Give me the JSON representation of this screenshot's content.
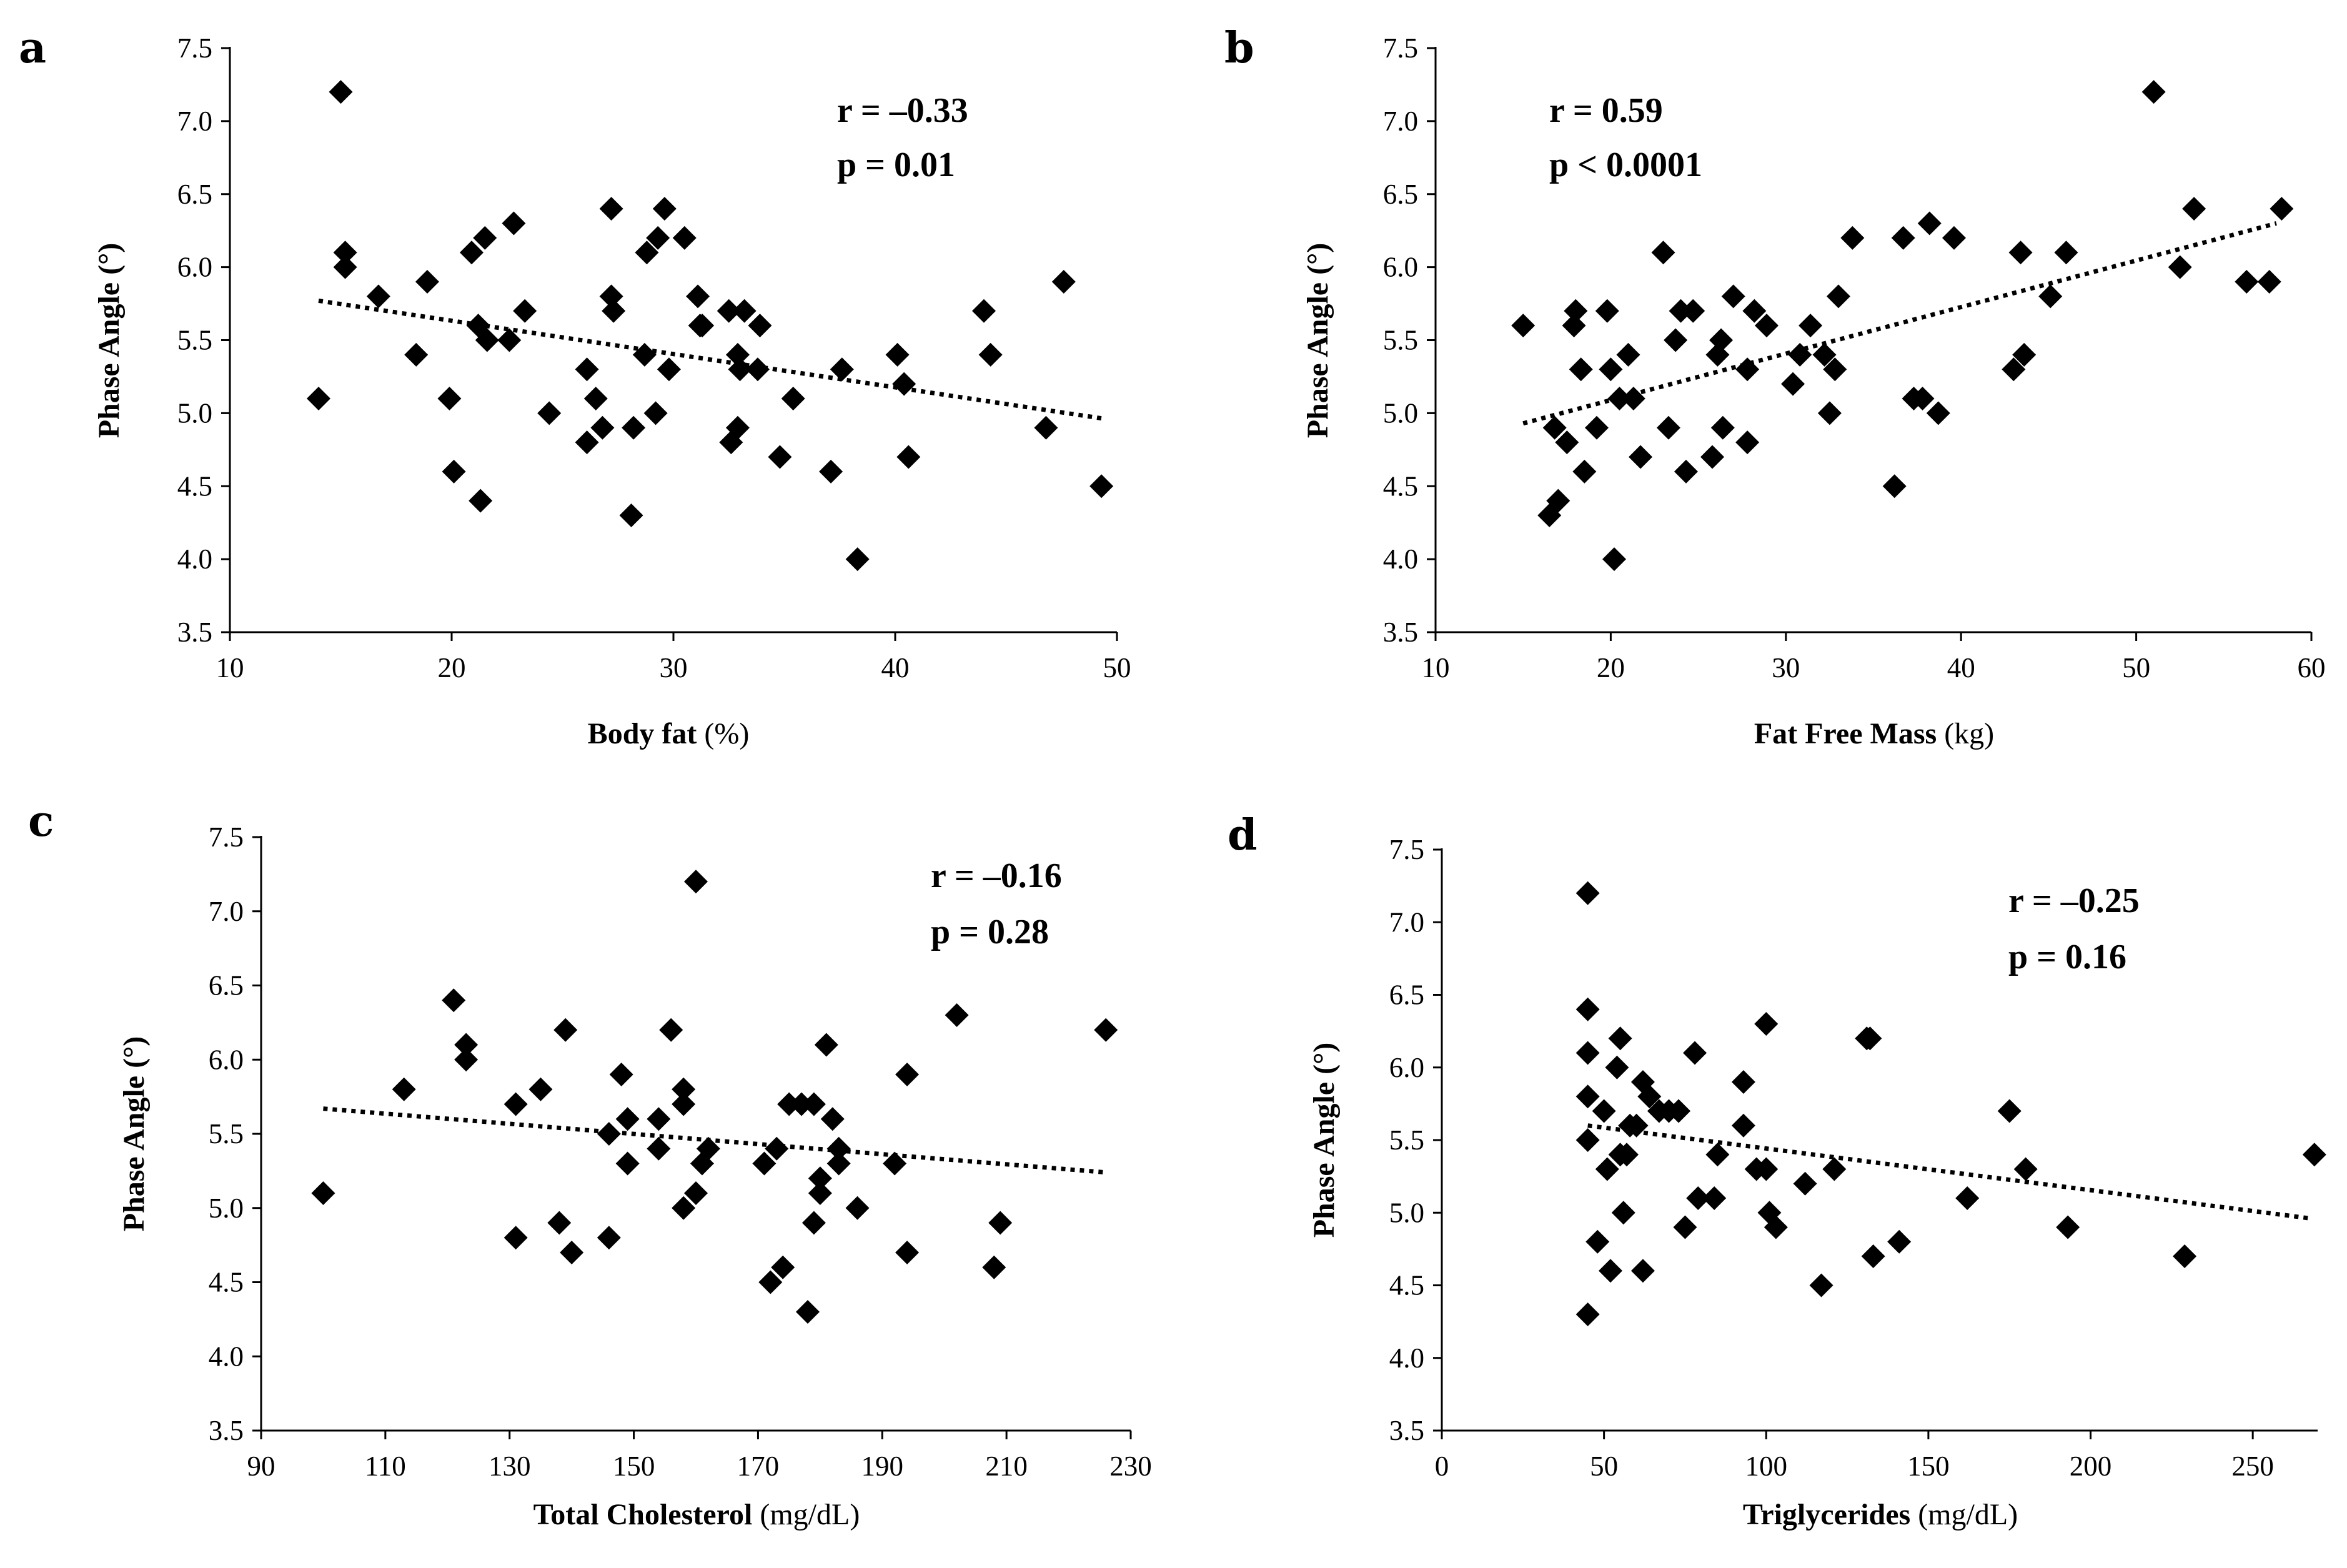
{
  "chart_data": [
    {
      "type": "scatter",
      "panel": "a",
      "xlabel": "Body fat",
      "xunit": " (%)",
      "ylabel": "Phase Angle (°)",
      "xlim": [
        10,
        50
      ],
      "ylim": [
        3.5,
        7.5
      ],
      "xticks": [
        10,
        20,
        30,
        40,
        50
      ],
      "yticks": [
        3.5,
        4.0,
        4.5,
        5.0,
        5.5,
        6.0,
        6.5,
        7.0,
        7.5
      ],
      "x_decimals": 0,
      "r_text": "r = –0.33",
      "p_text": "p = 0.01",
      "trend": [
        [
          14,
          5.77
        ],
        [
          49.5,
          4.96
        ]
      ],
      "points": [
        [
          14,
          5.1
        ],
        [
          15,
          7.2
        ],
        [
          15.2,
          6.1
        ],
        [
          15.2,
          6.0
        ],
        [
          16.7,
          5.8
        ],
        [
          18.4,
          5.4
        ],
        [
          18.9,
          5.9
        ],
        [
          19.9,
          5.1
        ],
        [
          20.1,
          4.6
        ],
        [
          20.9,
          6.1
        ],
        [
          21.2,
          5.6
        ],
        [
          21.3,
          4.4
        ],
        [
          21.5,
          6.2
        ],
        [
          21.6,
          5.5
        ],
        [
          22.6,
          5.5
        ],
        [
          22.8,
          6.3
        ],
        [
          23.3,
          5.7
        ],
        [
          24.4,
          5.0
        ],
        [
          26.1,
          5.3
        ],
        [
          26.1,
          4.8
        ],
        [
          26.5,
          5.1
        ],
        [
          26.8,
          4.9
        ],
        [
          27.2,
          6.4
        ],
        [
          27.2,
          5.8
        ],
        [
          27.3,
          5.7
        ],
        [
          28.1,
          4.3
        ],
        [
          28.2,
          4.9
        ],
        [
          28.7,
          5.4
        ],
        [
          28.8,
          6.1
        ],
        [
          29.2,
          5.0
        ],
        [
          29.3,
          6.2
        ],
        [
          29.6,
          6.4
        ],
        [
          29.8,
          5.3
        ],
        [
          30.5,
          6.2
        ],
        [
          31.1,
          5.8
        ],
        [
          31.2,
          5.6
        ],
        [
          31.3,
          5.6
        ],
        [
          32.5,
          5.7
        ],
        [
          32.6,
          4.8
        ],
        [
          32.9,
          4.9
        ],
        [
          32.9,
          5.4
        ],
        [
          33.0,
          5.3
        ],
        [
          33.2,
          5.7
        ],
        [
          33.9,
          5.6
        ],
        [
          33.8,
          5.3
        ],
        [
          34.8,
          4.7
        ],
        [
          35.4,
          5.1
        ],
        [
          37.1,
          4.6
        ],
        [
          37.6,
          5.3
        ],
        [
          38.3,
          4.0
        ],
        [
          40.1,
          5.4
        ],
        [
          40.4,
          5.2
        ],
        [
          40.6,
          4.7
        ],
        [
          44.0,
          5.7
        ],
        [
          44.3,
          5.4
        ],
        [
          46.8,
          4.9
        ],
        [
          47.6,
          5.9
        ],
        [
          49.3,
          4.5
        ]
      ]
    },
    {
      "type": "scatter",
      "panel": "b",
      "xlabel": "Fat Free Mass",
      "xunit": " (kg)",
      "ylabel": "Phase Angle (°)",
      "xlim": [
        10,
        60
      ],
      "ylim": [
        3.5,
        7.5
      ],
      "xticks": [
        10,
        20,
        30,
        40,
        50,
        60
      ],
      "yticks": [
        3.5,
        4.0,
        4.5,
        5.0,
        5.5,
        6.0,
        6.5,
        7.0,
        7.5
      ],
      "x_decimals": 0,
      "r_text": "r = 0.59",
      "p_text": "p < 0.0001",
      "trend": [
        [
          15,
          4.93
        ],
        [
          58,
          6.3
        ]
      ],
      "points": [
        [
          15.0,
          5.6
        ],
        [
          16.5,
          4.3
        ],
        [
          16.8,
          4.9
        ],
        [
          17.0,
          4.4
        ],
        [
          17.5,
          4.8
        ],
        [
          17.9,
          5.6
        ],
        [
          18.0,
          5.7
        ],
        [
          18.3,
          5.3
        ],
        [
          18.5,
          4.6
        ],
        [
          19.2,
          4.9
        ],
        [
          19.8,
          5.7
        ],
        [
          20.0,
          5.3
        ],
        [
          20.2,
          4.0
        ],
        [
          20.5,
          5.1
        ],
        [
          21.0,
          5.4
        ],
        [
          21.3,
          5.1
        ],
        [
          21.7,
          4.7
        ],
        [
          23.0,
          6.1
        ],
        [
          23.3,
          4.9
        ],
        [
          23.7,
          5.5
        ],
        [
          24.0,
          5.7
        ],
        [
          24.3,
          4.6
        ],
        [
          24.7,
          5.7
        ],
        [
          25.8,
          4.7
        ],
        [
          26.1,
          5.4
        ],
        [
          26.3,
          5.5
        ],
        [
          26.4,
          4.9
        ],
        [
          27.0,
          5.8
        ],
        [
          27.8,
          5.3
        ],
        [
          27.8,
          4.8
        ],
        [
          28.2,
          5.7
        ],
        [
          28.9,
          5.6
        ],
        [
          30.4,
          5.2
        ],
        [
          30.8,
          5.4
        ],
        [
          31.4,
          5.6
        ],
        [
          32.2,
          5.4
        ],
        [
          32.5,
          5.0
        ],
        [
          32.8,
          5.3
        ],
        [
          33.0,
          5.8
        ],
        [
          33.8,
          6.2
        ],
        [
          36.2,
          4.5
        ],
        [
          36.7,
          6.2
        ],
        [
          37.3,
          5.1
        ],
        [
          37.8,
          5.1
        ],
        [
          38.2,
          6.3
        ],
        [
          38.7,
          5.0
        ],
        [
          39.6,
          6.2
        ],
        [
          43.0,
          5.3
        ],
        [
          43.4,
          6.1
        ],
        [
          43.6,
          5.4
        ],
        [
          45.1,
          5.8
        ],
        [
          46.0,
          6.1
        ],
        [
          51.0,
          7.2
        ],
        [
          52.5,
          6.0
        ],
        [
          53.3,
          6.4
        ],
        [
          56.3,
          5.9
        ],
        [
          57.6,
          5.9
        ],
        [
          58.3,
          6.4
        ]
      ]
    },
    {
      "type": "scatter",
      "panel": "c",
      "xlabel": "Total Cholesterol",
      "xunit": " (mg/dL)",
      "ylabel": "Phase Angle (°)",
      "xlim": [
        90,
        230
      ],
      "ylim": [
        3.5,
        7.5
      ],
      "xticks": [
        90,
        110,
        130,
        150,
        170,
        190,
        210,
        230
      ],
      "yticks": [
        3.5,
        4.0,
        4.5,
        5.0,
        5.5,
        6.0,
        6.5,
        7.0,
        7.5
      ],
      "x_decimals": 0,
      "r_text": "r = –0.16",
      "p_text": "p = 0.28",
      "trend": [
        [
          100,
          5.67
        ],
        [
          226,
          5.24
        ]
      ],
      "points": [
        [
          100,
          5.1
        ],
        [
          113,
          5.8
        ],
        [
          121,
          6.4
        ],
        [
          123,
          6.1
        ],
        [
          123,
          6.0
        ],
        [
          131,
          5.7
        ],
        [
          131,
          4.8
        ],
        [
          135,
          5.8
        ],
        [
          138,
          4.9
        ],
        [
          139,
          6.2
        ],
        [
          140,
          4.7
        ],
        [
          146,
          5.5
        ],
        [
          146,
          4.8
        ],
        [
          148,
          5.9
        ],
        [
          149,
          5.6
        ],
        [
          149,
          5.3
        ],
        [
          154,
          5.6
        ],
        [
          154,
          5.4
        ],
        [
          156,
          6.2
        ],
        [
          158,
          5.7
        ],
        [
          158,
          5.8
        ],
        [
          158,
          5.0
        ],
        [
          160,
          7.2
        ],
        [
          160,
          5.1
        ],
        [
          161,
          5.3
        ],
        [
          162,
          5.4
        ],
        [
          171,
          5.3
        ],
        [
          172,
          4.5
        ],
        [
          173,
          5.4
        ],
        [
          174,
          4.6
        ],
        [
          175,
          5.7
        ],
        [
          177,
          5.7
        ],
        [
          178,
          4.3
        ],
        [
          179,
          5.7
        ],
        [
          179,
          4.9
        ],
        [
          180,
          5.2
        ],
        [
          180,
          5.1
        ],
        [
          181,
          6.1
        ],
        [
          182,
          5.6
        ],
        [
          183,
          5.4
        ],
        [
          183,
          5.3
        ],
        [
          186,
          5.0
        ],
        [
          192,
          5.3
        ],
        [
          194,
          5.9
        ],
        [
          194,
          4.7
        ],
        [
          202,
          6.3
        ],
        [
          208,
          4.6
        ],
        [
          209,
          4.9
        ],
        [
          226,
          6.2
        ]
      ]
    },
    {
      "type": "scatter",
      "panel": "d",
      "xlabel": "Triglycerides",
      "xunit": " (mg/dL)",
      "ylabel": "Phase Angle (°)",
      "xlim": [
        0,
        270
      ],
      "ylim": [
        3.5,
        7.5
      ],
      "xticks": [
        0,
        50,
        100,
        150,
        200,
        250
      ],
      "yticks": [
        3.5,
        4.0,
        4.5,
        5.0,
        5.5,
        6.0,
        6.5,
        7.0,
        7.5
      ],
      "x_decimals": 0,
      "r_text": "r = –0.25",
      "p_text": "p = 0.16",
      "trend": [
        [
          45,
          5.6
        ],
        [
          268,
          4.96
        ]
      ],
      "points": [
        [
          45,
          7.2
        ],
        [
          45,
          6.4
        ],
        [
          45,
          6.1
        ],
        [
          45,
          5.8
        ],
        [
          45,
          5.5
        ],
        [
          45,
          4.3
        ],
        [
          48,
          4.8
        ],
        [
          50,
          5.7
        ],
        [
          51,
          5.3
        ],
        [
          52,
          4.6
        ],
        [
          54,
          6.0
        ],
        [
          55,
          6.2
        ],
        [
          55,
          5.4
        ],
        [
          56,
          5.0
        ],
        [
          57,
          5.4
        ],
        [
          58,
          5.6
        ],
        [
          60,
          5.6
        ],
        [
          62,
          5.9
        ],
        [
          62,
          4.6
        ],
        [
          64,
          5.8
        ],
        [
          67,
          5.7
        ],
        [
          70,
          5.7
        ],
        [
          73,
          5.7
        ],
        [
          75,
          4.9
        ],
        [
          78,
          6.1
        ],
        [
          79,
          5.1
        ],
        [
          84,
          5.1
        ],
        [
          85,
          5.4
        ],
        [
          93,
          5.9
        ],
        [
          93,
          5.6
        ],
        [
          97,
          5.3
        ],
        [
          100,
          6.3
        ],
        [
          100,
          5.3
        ],
        [
          101,
          5.0
        ],
        [
          103,
          4.9
        ],
        [
          112,
          5.2
        ],
        [
          117,
          4.5
        ],
        [
          121,
          5.3
        ],
        [
          131,
          6.2
        ],
        [
          132,
          6.2
        ],
        [
          133,
          4.7
        ],
        [
          141,
          4.8
        ],
        [
          162,
          5.1
        ],
        [
          175,
          5.7
        ],
        [
          180,
          5.3
        ],
        [
          193,
          4.9
        ],
        [
          229,
          4.7
        ],
        [
          269,
          5.4
        ]
      ]
    }
  ]
}
